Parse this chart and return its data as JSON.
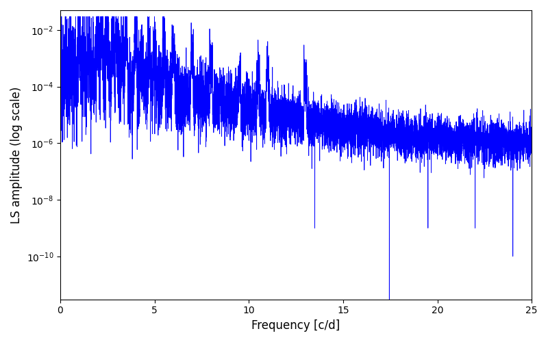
{
  "xlabel": "Frequency [c/d]",
  "ylabel": "LS amplitude (log scale)",
  "xlim": [
    0,
    25
  ],
  "ylim": [
    3e-12,
    0.05
  ],
  "line_color": "blue",
  "line_width": 0.6,
  "background_color": "white",
  "figsize": [
    8.0,
    5.0
  ],
  "dpi": 100,
  "seed": 12345,
  "n_points": 8000,
  "freq_max": 25.0,
  "base_amplitude_low": 0.0005,
  "base_amplitude_high": 1e-06,
  "decay_rate": 0.35,
  "noise_scale_low": 1.8,
  "noise_scale_high": 0.8,
  "spike_freq": 17.45,
  "spike_depth": 3e-12,
  "spike2_freq": 24.0,
  "spike2_depth": 1e-10,
  "yticks": [
    1e-10,
    1e-08,
    1e-06,
    0.0001,
    0.01
  ],
  "xticks": [
    0,
    5,
    10,
    15,
    20,
    25
  ]
}
